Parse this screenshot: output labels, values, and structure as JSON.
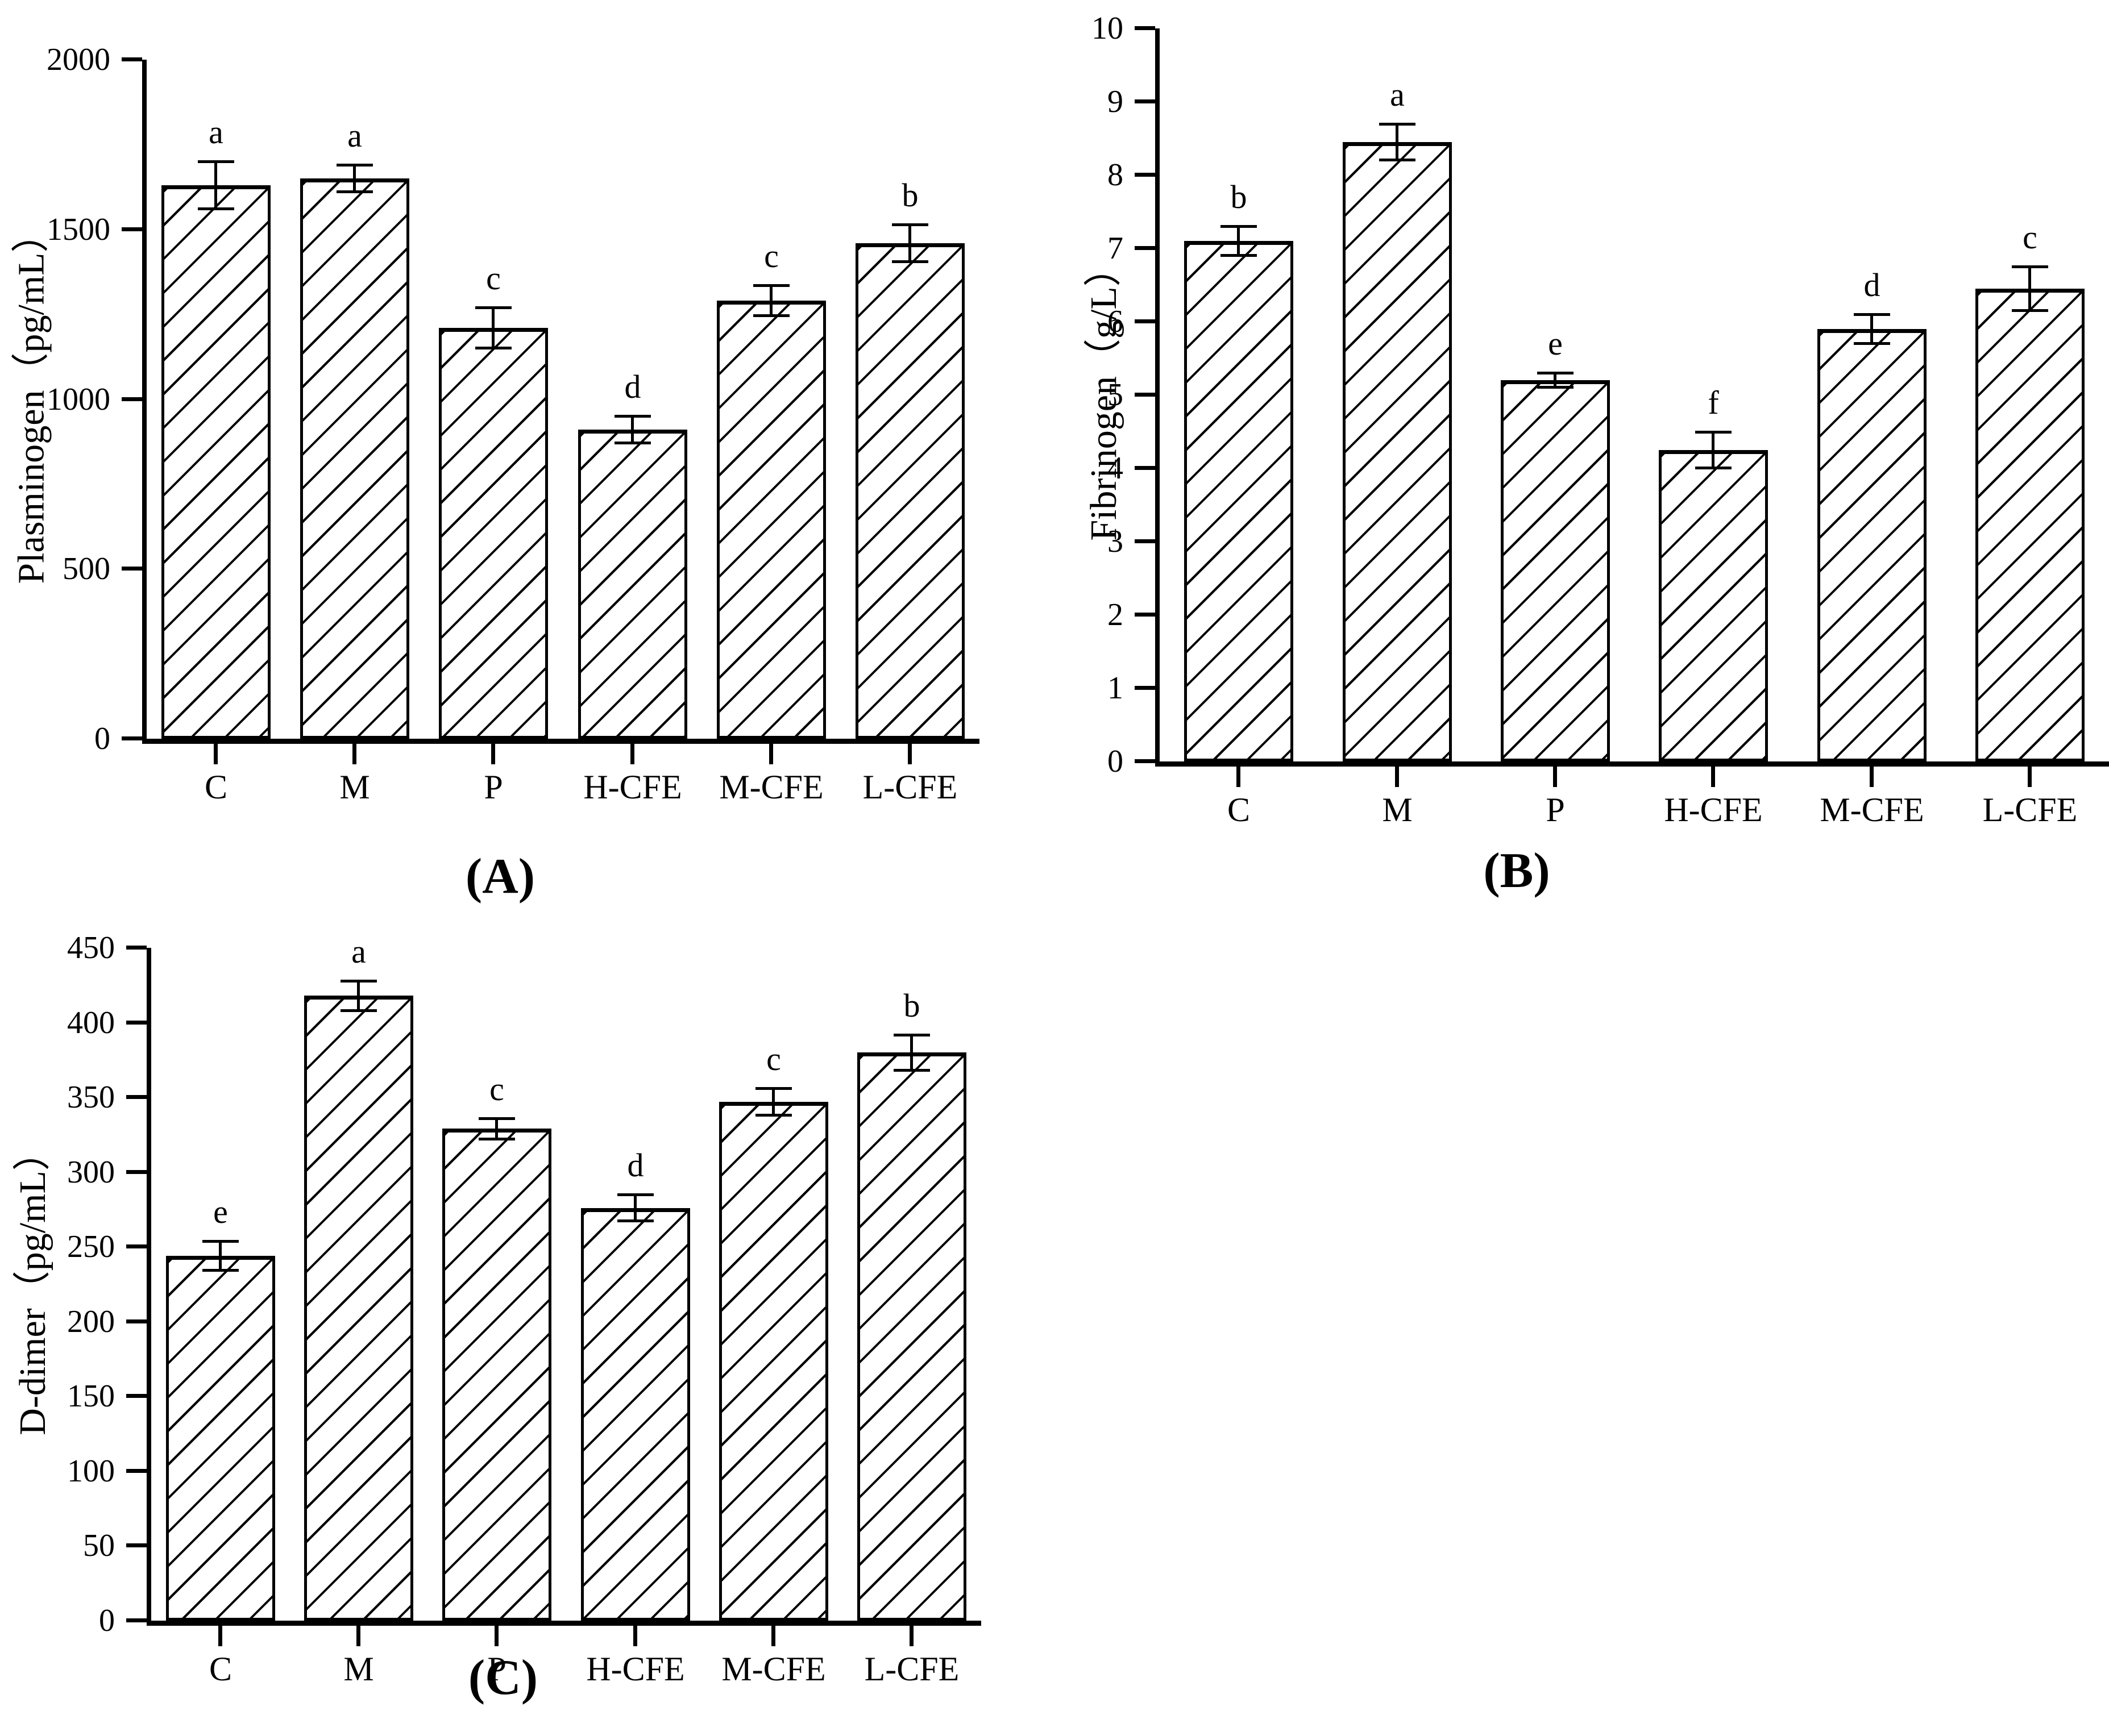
{
  "colors": {
    "ink": "#000000",
    "background": "#ffffff"
  },
  "chart_data": [
    {
      "type": "bar",
      "panel": "A",
      "caption": "(A)",
      "ylabel": "Plasminogen（pg/mL）",
      "xlabel": "",
      "ylim": [
        0,
        2000
      ],
      "ytick_step": 500,
      "grid": false,
      "legend": "none",
      "bar_fill": "diagonal-hatch",
      "categories": [
        "C",
        "M",
        "P",
        "H-CFE",
        "M-CFE",
        "L-CFE"
      ],
      "values": [
        1630,
        1650,
        1210,
        910,
        1290,
        1460
      ],
      "errors": [
        70,
        40,
        60,
        40,
        45,
        55
      ],
      "sig_letters": [
        "a",
        "a",
        "c",
        "d",
        "c",
        "b"
      ]
    },
    {
      "type": "bar",
      "panel": "B",
      "caption": "(B)",
      "ylabel": "Fibrinogen（g/L）",
      "xlabel": "",
      "ylim": [
        0,
        10
      ],
      "ytick_step": 1,
      "grid": false,
      "legend": "none",
      "bar_fill": "diagonal-hatch",
      "categories": [
        "C",
        "M",
        "P",
        "H-CFE",
        "M-CFE",
        "L-CFE"
      ],
      "values": [
        7.1,
        8.45,
        5.2,
        4.25,
        5.9,
        6.45
      ],
      "errors": [
        0.2,
        0.25,
        0.1,
        0.25,
        0.2,
        0.3
      ],
      "sig_letters": [
        "b",
        "a",
        "e",
        "f",
        "d",
        "c"
      ]
    },
    {
      "type": "bar",
      "panel": "C",
      "caption": "(C)",
      "ylabel": "D-dimer（pg/mL）",
      "xlabel": "",
      "ylim": [
        0,
        450
      ],
      "ytick_step": 50,
      "grid": false,
      "legend": "none",
      "bar_fill": "diagonal-hatch",
      "categories": [
        "C",
        "M",
        "P",
        "H-CFE",
        "M-CFE",
        "L-CFE"
      ],
      "values": [
        244,
        418,
        329,
        276,
        347,
        380
      ],
      "errors": [
        10,
        10,
        7,
        9,
        9,
        12
      ],
      "sig_letters": [
        "e",
        "a",
        "c",
        "d",
        "c",
        "b"
      ]
    }
  ]
}
